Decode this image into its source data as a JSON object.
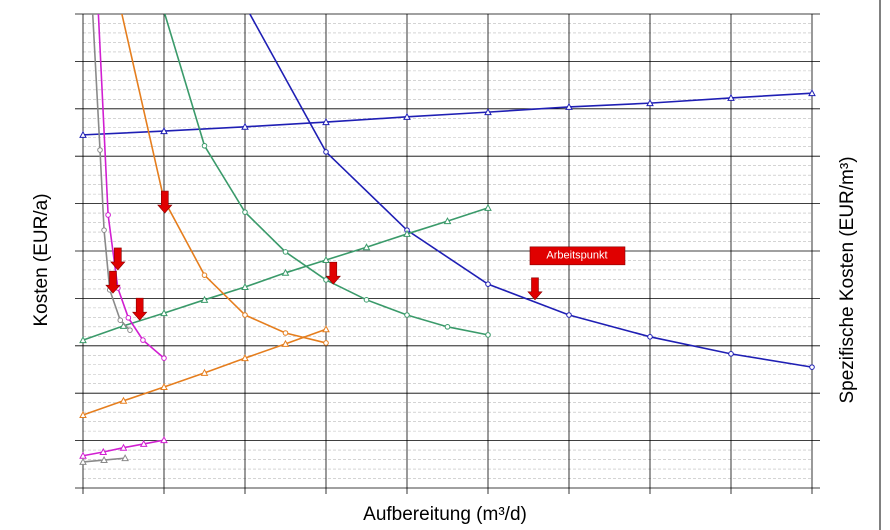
{
  "chart_data": {
    "type": "line",
    "xlabel": "Aufbereitung (m³/d)",
    "ylabel": "Kosten (EUR/a)",
    "y2label": "Spezifische Kosten (EUR/m³)",
    "xlim": [
      0,
      9
    ],
    "ylim": [
      0,
      10
    ],
    "xticks": [
      0,
      1,
      2,
      3,
      4,
      5,
      6,
      7,
      8,
      9
    ],
    "yticks": [
      0,
      1,
      2,
      3,
      4,
      5,
      6,
      7,
      8,
      9,
      10
    ],
    "grid": true,
    "series": [
      {
        "color": "#1f1fb4",
        "marker": "circle",
        "x": [
          2.06,
          3,
          4,
          5,
          6,
          7,
          8,
          9
        ],
        "values": [
          10,
          7.09,
          5.44,
          4.3,
          3.65,
          3.19,
          2.83,
          2.55
        ]
      },
      {
        "color": "#1f1fb4",
        "marker": "triangle",
        "x": [
          0,
          1,
          2,
          3,
          4,
          5,
          6,
          7,
          8,
          9
        ],
        "values": [
          7.45,
          7.53,
          7.62,
          7.72,
          7.83,
          7.93,
          8.04,
          8.12,
          8.23,
          8.33
        ]
      },
      {
        "color": "#3a9a6a",
        "marker": "circle",
        "x": [
          1.01,
          1.5,
          2,
          2.5,
          3,
          3.5,
          4,
          4.5,
          5
        ],
        "values": [
          10,
          7.22,
          5.82,
          4.98,
          4.39,
          3.97,
          3.65,
          3.4,
          3.23
        ]
      },
      {
        "color": "#3a9a6a",
        "marker": "triangle",
        "x": [
          0,
          0.5,
          1,
          1.5,
          2,
          2.5,
          3,
          3.5,
          4,
          4.5,
          5
        ],
        "values": [
          3.12,
          3.42,
          3.69,
          3.97,
          4.24,
          4.54,
          4.81,
          5.08,
          5.36,
          5.63,
          5.91
        ]
      },
      {
        "color": "#e57e1e",
        "marker": "circle",
        "x": [
          0.48,
          1,
          1.5,
          2,
          2.5,
          3
        ],
        "values": [
          10,
          6.08,
          4.49,
          3.65,
          3.27,
          3.06
        ]
      },
      {
        "color": "#e57e1e",
        "marker": "triangle",
        "x": [
          0,
          0.5,
          1,
          1.5,
          2,
          2.5,
          3
        ],
        "values": [
          1.54,
          1.84,
          2.13,
          2.43,
          2.74,
          3.04,
          3.35
        ]
      },
      {
        "color": "#d11fd1",
        "marker": "circle",
        "x": [
          0.19,
          0.31,
          0.43,
          0.56,
          0.74,
          1
        ],
        "values": [
          10,
          5.76,
          4.22,
          3.59,
          3.12,
          2.74
        ]
      },
      {
        "color": "#8a8a8a",
        "marker": "circle",
        "x": [
          0.12,
          0.21,
          0.26,
          0.33,
          0.46,
          0.58
        ],
        "values": [
          10,
          7.13,
          5.44,
          4.18,
          3.54,
          3.33
        ]
      },
      {
        "color": "#d11fd1",
        "marker": "triangle",
        "x": [
          0,
          0.25,
          0.5,
          0.75,
          1
        ],
        "values": [
          0.68,
          0.76,
          0.85,
          0.93,
          1.01
        ]
      },
      {
        "color": "#8a8a8a",
        "marker": "triangle",
        "x": [
          0,
          0.26,
          0.52
        ],
        "values": [
          0.55,
          0.59,
          0.63
        ]
      }
    ],
    "markers": {
      "color": "#e00000",
      "x": [
        1.01,
        0.43,
        0.37,
        0.7,
        3.09,
        5.58
      ],
      "y": [
        5.8,
        4.6,
        4.11,
        3.54,
        4.3,
        3.97
      ]
    },
    "annotation": "Arbeitspunkt"
  }
}
